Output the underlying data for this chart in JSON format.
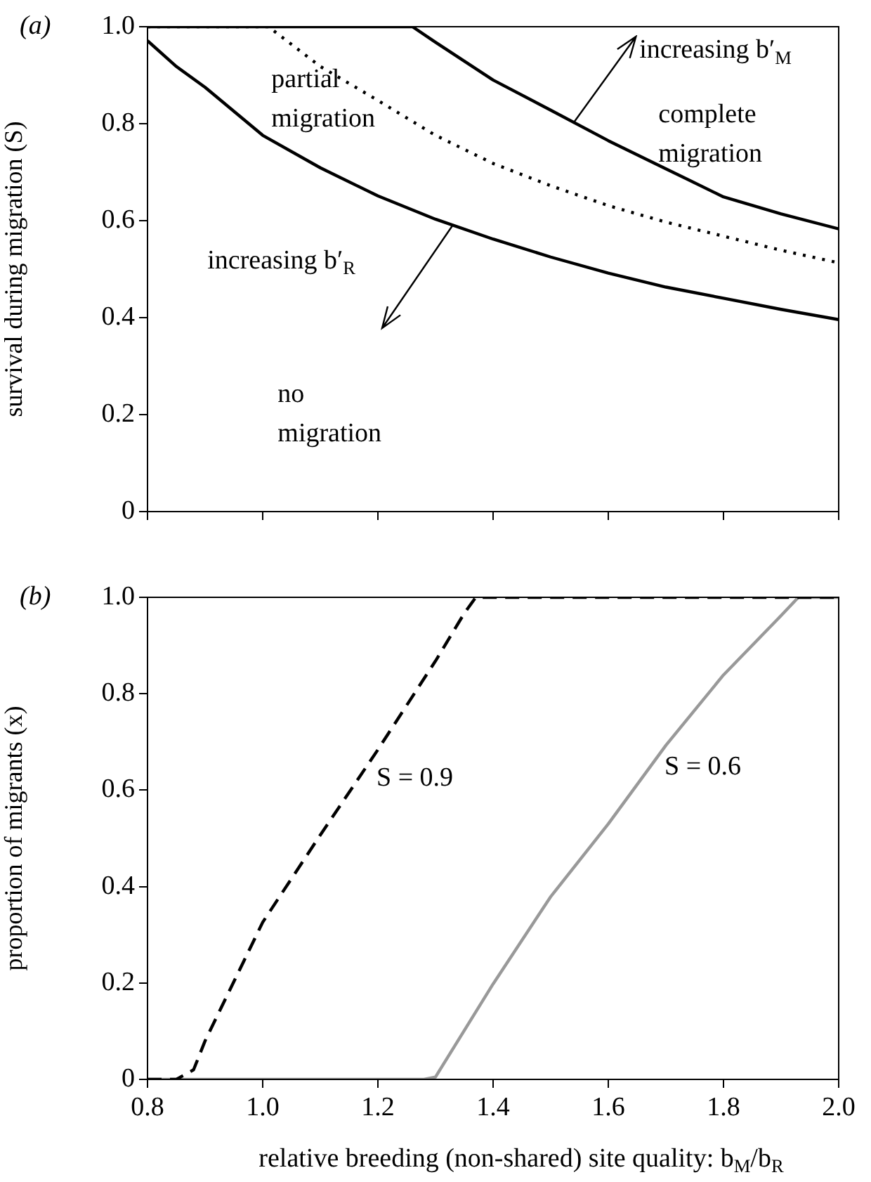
{
  "chart_data": [
    {
      "type": "line",
      "title": "(a)",
      "ylabel": "survival during migration (S)",
      "xlim": [
        0.8,
        2.0
      ],
      "ylim": [
        0,
        1
      ],
      "xticks": [
        {
          "value": 0.8,
          "label": null
        },
        {
          "value": 1.0,
          "label": null
        },
        {
          "value": 1.2,
          "label": null
        },
        {
          "value": 1.4,
          "label": null
        },
        {
          "value": 1.6,
          "label": null
        },
        {
          "value": 1.8,
          "label": null
        },
        {
          "value": 2.0,
          "label": null
        }
      ],
      "yticks": [
        0,
        0.2,
        0.4,
        0.6,
        0.8,
        {
          "value": 1,
          "label": "1.0"
        }
      ],
      "tick_labels": "y",
      "annotations": [
        "partial migration",
        "complete migration",
        "no migration",
        {
          "text": "increasing b′$_{M}$",
          "x": 1.54,
          "y": 0.8
        },
        "increasing b′$_{R}$"
      ],
      "series": [
        {
          "color": "#000000",
          "line_style": "solid",
          "x": [
            0.8,
            0.85,
            0.9,
            1.0,
            1.1,
            1.2,
            1.3,
            1.4,
            1.5,
            1.6,
            1.7,
            1.8,
            1.9,
            2.0
          ],
          "values": [
            0.971,
            0.918,
            0.875,
            0.776,
            0.709,
            0.651,
            0.603,
            0.562,
            0.525,
            0.492,
            0.463,
            0.44,
            0.417,
            0.396
          ]
        },
        {
          "color": "#000000",
          "line_style": "dotted",
          "x": [
            0.8,
            1.01,
            1.1,
            1.2,
            1.3,
            1.4,
            1.5,
            1.6,
            1.7,
            1.8,
            1.9,
            2.0
          ],
          "values": [
            1,
            1,
            0.918,
            0.848,
            0.776,
            0.718,
            0.672,
            0.631,
            0.597,
            0.568,
            0.539,
            0.513
          ]
        },
        {
          "color": "#000000",
          "line_style": "solid",
          "x": [
            0.8,
            1.26,
            1.3,
            1.4,
            1.5,
            1.6,
            1.7,
            1.8,
            1.9,
            2.0
          ],
          "values": [
            1,
            1,
            0.968,
            0.89,
            0.828,
            0.765,
            0.707,
            0.649,
            0.614,
            0.583
          ]
        }
      ]
    },
    {
      "type": "line",
      "title": "(b)",
      "xlabel": "relative breeding (non-shared) site quality: b$_{M}$/b$_{R}$",
      "ylabel": "proportion of migrants (x)",
      "xlim": [
        0.8,
        2.0
      ],
      "ylim": [
        0,
        1
      ],
      "xticks": [
        0.8,
        {
          "value": 1.0,
          "label": "1.0"
        },
        1.2,
        1.4,
        1.6,
        1.8,
        {
          "value": 2.0,
          "label": "2.0"
        }
      ],
      "yticks": [
        0,
        0.2,
        0.4,
        0.6,
        0.8,
        {
          "value": 1,
          "label": "1.0"
        }
      ],
      "series": [
        {
          "name": "S = 0.9",
          "color": "#000000",
          "line_style": "dashed",
          "x": [
            0.8,
            0.85,
            0.88,
            0.9,
            1.0,
            1.1,
            1.2,
            1.3,
            1.35,
            1.37,
            2.0
          ],
          "values": [
            0,
            0,
            0.02,
            0.08,
            0.326,
            0.507,
            0.684,
            0.868,
            0.967,
            1,
            1
          ]
        },
        {
          "name": "S = 0.6",
          "color": "#999999",
          "line_style": "solid",
          "x": [
            0.8,
            1.28,
            1.3,
            1.4,
            1.5,
            1.6,
            1.7,
            1.8,
            1.9,
            1.93,
            2.0
          ],
          "values": [
            0,
            0,
            0.005,
            0.198,
            0.379,
            0.53,
            0.693,
            0.839,
            0.962,
            1,
            1
          ]
        }
      ]
    }
  ]
}
